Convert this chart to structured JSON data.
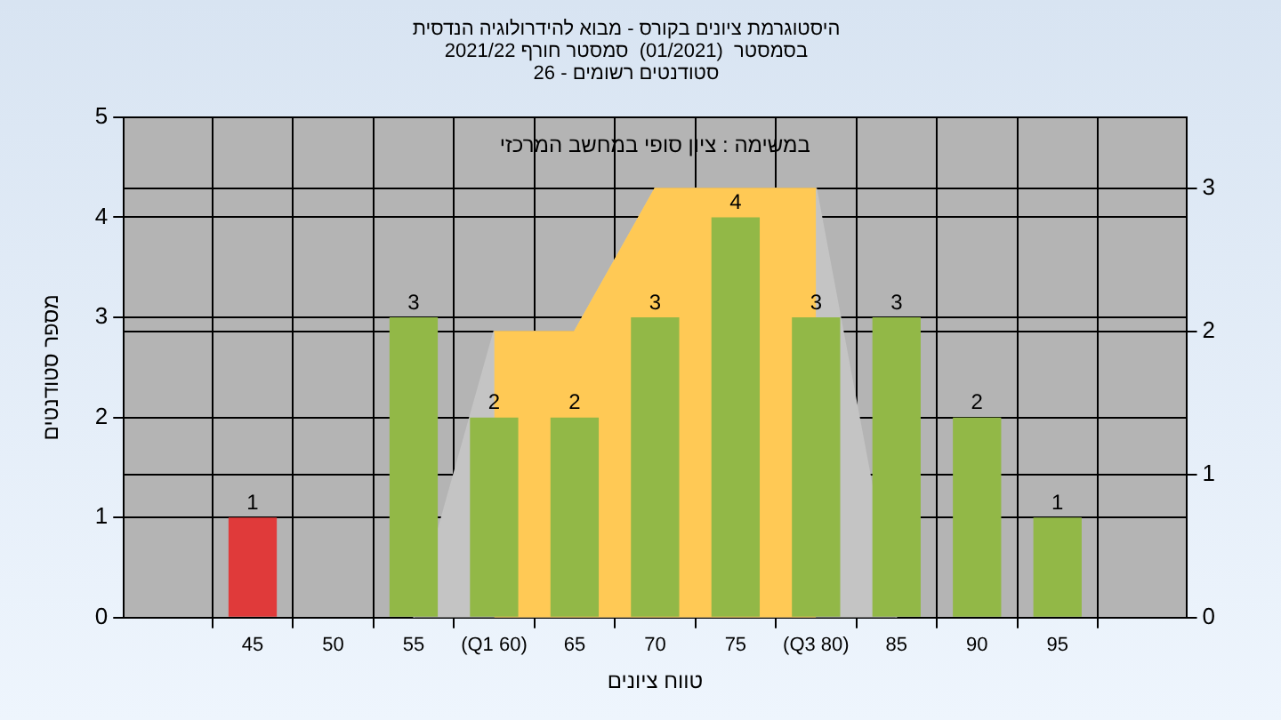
{
  "chart_data": {
    "type": "bar",
    "title": "היסטוגרמת ציונים בקורס - מבוא להידרולוגיה הנדסית",
    "subtitle": "בסמסטר  (01/2021)  סמסטר חורף 2021/22\nסטודנטים רשומים - 26",
    "xlabel": "טווח ציונים",
    "ylabel": "מספר סטודנטים",
    "annotations": [
      "במשימה : ציון סופי במחשב המרכזי"
    ],
    "categories": [
      "45",
      "50",
      "55",
      "(Q1 60)",
      "65",
      "70",
      "75",
      "(Q3 80)",
      "85",
      "90",
      "95"
    ],
    "series": [
      {
        "type": "area",
        "axis": "y2",
        "color": "#c4c4c4",
        "values": [
          null,
          null,
          0,
          2,
          2,
          3,
          3,
          3,
          0,
          null,
          null
        ]
      },
      {
        "type": "area",
        "axis": "y2",
        "color": "#ffc955",
        "values": [
          null,
          null,
          null,
          2,
          2,
          3,
          3,
          3,
          null,
          null,
          null
        ]
      },
      {
        "colors": [
          "#e03a3a",
          "#92b847",
          "#92b847",
          "#92b847",
          "#92b847",
          "#92b847",
          "#92b847",
          "#92b847",
          "#92b847",
          "#92b847",
          "#92b847"
        ],
        "values": [
          1,
          0,
          3,
          2,
          2,
          3,
          4,
          3,
          3,
          2,
          1
        ],
        "value_labels": [
          "1",
          null,
          "3",
          "2",
          "2",
          "3",
          "4",
          "3",
          "3",
          "2",
          "1"
        ]
      }
    ],
    "ylim": [
      0,
      5
    ],
    "yticks": [
      0,
      1,
      2,
      3,
      4,
      5
    ],
    "y2lim": [
      0,
      3.5
    ],
    "y2ticks": [
      0,
      1,
      2,
      3
    ],
    "grid": true,
    "legend": false
  }
}
